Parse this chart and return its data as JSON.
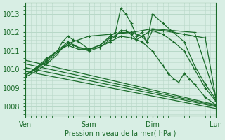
{
  "title": "Pression niveau de la mer( hPa )",
  "bg_color": "#d8eee4",
  "grid_color": "#b8d8c8",
  "line_color": "#1a6b2a",
  "xlim": [
    0,
    72
  ],
  "ylim": [
    1007.5,
    1013.6
  ],
  "yticks": [
    1008,
    1009,
    1010,
    1011,
    1012,
    1013
  ],
  "xtick_positions": [
    0,
    24,
    48,
    72
  ],
  "xtick_labels": [
    "Ven",
    "Sam",
    "Dim",
    "Lun"
  ],
  "lines": [
    {
      "x": [
        0,
        4,
        8,
        12,
        14,
        16,
        18,
        20,
        24,
        28,
        32,
        34,
        36,
        38,
        40,
        42,
        44,
        46,
        48,
        52,
        56,
        60,
        64,
        68,
        72
      ],
      "y": [
        1009.7,
        1010.0,
        1010.5,
        1011.0,
        1011.5,
        1011.8,
        1011.6,
        1011.5,
        1011.1,
        1011.3,
        1011.8,
        1012.0,
        1013.3,
        1013.0,
        1012.5,
        1011.8,
        1012.0,
        1011.5,
        1013.0,
        1012.5,
        1012.0,
        1011.5,
        1010.2,
        1009.2,
        1008.4
      ]
    },
    {
      "x": [
        0,
        4,
        8,
        12,
        14,
        16,
        18,
        20,
        24,
        28,
        32,
        34,
        36,
        38,
        40,
        42,
        44,
        46,
        48,
        52,
        56,
        60,
        64,
        68,
        72
      ],
      "y": [
        1009.6,
        1009.9,
        1010.3,
        1010.8,
        1011.2,
        1011.4,
        1011.3,
        1011.2,
        1011.0,
        1011.2,
        1011.6,
        1011.8,
        1012.1,
        1012.1,
        1011.9,
        1011.6,
        1011.8,
        1011.5,
        1012.1,
        1011.9,
        1011.5,
        1011.0,
        1010.0,
        1009.0,
        1008.3
      ]
    },
    {
      "x": [
        0,
        4,
        8,
        12,
        16,
        20,
        24,
        28,
        32,
        36,
        40,
        44,
        48,
        52,
        56,
        60,
        64,
        68,
        72
      ],
      "y": [
        1009.7,
        1010.1,
        1010.5,
        1011.0,
        1011.5,
        1011.2,
        1011.1,
        1011.3,
        1011.7,
        1012.0,
        1012.0,
        1011.8,
        1012.15,
        1012.1,
        1012.0,
        1011.9,
        1011.8,
        1011.7,
        1008.5
      ]
    },
    {
      "x": [
        0,
        8,
        16,
        24,
        32,
        40,
        48,
        56,
        64,
        72
      ],
      "y": [
        1009.7,
        1010.4,
        1011.4,
        1011.8,
        1011.9,
        1012.0,
        1012.2,
        1012.1,
        1012.0,
        1008.5
      ]
    },
    {
      "x": [
        0,
        72
      ],
      "y": [
        1010.5,
        1008.1
      ]
    },
    {
      "x": [
        0,
        72
      ],
      "y": [
        1010.3,
        1008.05
      ]
    },
    {
      "x": [
        0,
        72
      ],
      "y": [
        1010.1,
        1008.0
      ]
    },
    {
      "x": [
        0,
        72
      ],
      "y": [
        1009.9,
        1007.9
      ]
    },
    {
      "x": [
        0,
        4,
        8,
        12,
        16,
        20,
        24,
        28,
        32,
        36,
        40,
        44,
        48,
        52,
        54,
        56,
        58,
        60,
        62,
        64,
        68,
        72
      ],
      "y": [
        1009.7,
        1010.1,
        1010.6,
        1011.0,
        1011.3,
        1011.1,
        1011.1,
        1011.2,
        1011.5,
        1011.8,
        1011.7,
        1011.5,
        1011.0,
        1010.2,
        1009.8,
        1009.5,
        1009.3,
        1009.8,
        1009.5,
        1009.2,
        1008.5,
        1008.1
      ]
    }
  ]
}
